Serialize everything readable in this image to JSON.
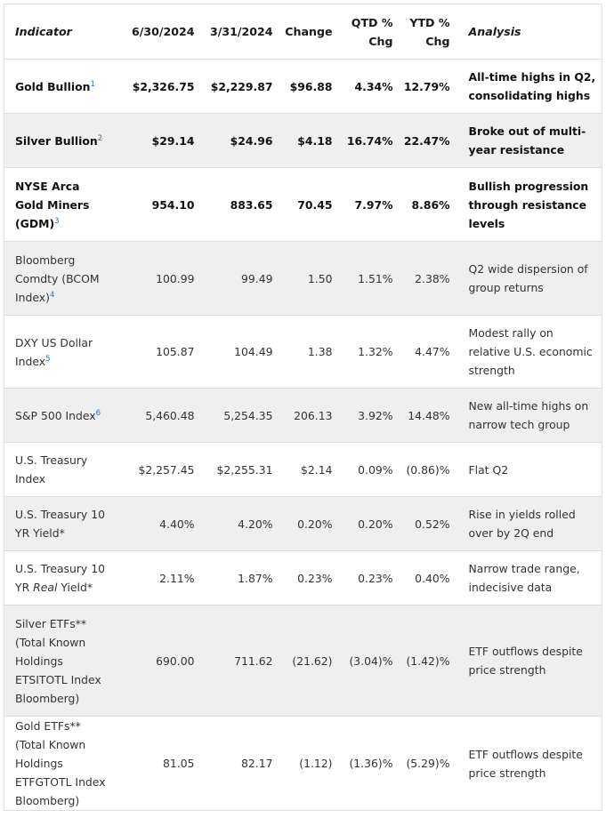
{
  "headers": {
    "indicator": "Indicator",
    "date1": "6/30/2024",
    "date2": "3/31/2024",
    "change": "Change",
    "qtd_line1": "QTD %",
    "qtd_line2": "Chg",
    "ytd_line1": "YTD %",
    "ytd_line2": "Chg",
    "analysis": "Analysis"
  },
  "rows": [
    {
      "name": "Gold Bullion",
      "sup": "1",
      "v1": "$2,326.75",
      "v2": "$2,229.87",
      "change": "$96.88",
      "qtd": "4.34%",
      "ytd": "12.79%",
      "analysis": "All-time highs in Q2, consolidating highs"
    },
    {
      "name": "Silver Bullion",
      "sup": "2",
      "v1": "$29.14",
      "v2": "$24.96",
      "change": "$4.18",
      "qtd": "16.74%",
      "ytd": "22.47%",
      "analysis": "Broke out of multi-year resistance"
    },
    {
      "name": "NYSE Arca Gold Miners (GDM)",
      "sup": "3",
      "v1": "954.10",
      "v2": "883.65",
      "change": "70.45",
      "qtd": "7.97%",
      "ytd": "8.86%",
      "analysis": "Bullish progression through resistance levels"
    },
    {
      "name": "Bloomberg Comdty (BCOM Index)",
      "sup": "4",
      "v1": "100.99",
      "v2": "99.49",
      "change": "1.50",
      "qtd": "1.51%",
      "ytd": "2.38%",
      "analysis": "Q2 wide dispersion of group returns"
    },
    {
      "name": "DXY US Dollar Index",
      "sup": "5",
      "v1": "105.87",
      "v2": "104.49",
      "change": "1.38",
      "qtd": "1.32%",
      "ytd": "4.47%",
      "analysis": "Modest rally on relative U.S. economic strength"
    },
    {
      "name": "S&P 500 Index",
      "sup": "6",
      "v1": "5,460.48",
      "v2": "5,254.35",
      "change": "206.13",
      "qtd": "3.92%",
      "ytd": "14.48%",
      "analysis": "New all-time highs on narrow tech group"
    },
    {
      "name": "U.S. Treasury Index",
      "v1": "$2,257.45",
      "v2": "$2,255.31",
      "change": "$2.14",
      "qtd": "0.09%",
      "ytd": "(0.86)%",
      "analysis": "Flat Q2"
    },
    {
      "name": "U.S. Treasury 10 YR Yield*",
      "v1": "4.40%",
      "v2": "4.20%",
      "change": "0.20%",
      "qtd": "0.20%",
      "ytd": "0.52%",
      "analysis": "Rise in yields rolled over by 2Q end"
    },
    {
      "name_pre": "U.S. Treasury 10 YR ",
      "name_em": "Real",
      "name_post": " Yield*",
      "v1": "2.11%",
      "v2": "1.87%",
      "change": "0.23%",
      "qtd": "0.23%",
      "ytd": "0.40%",
      "analysis": "Narrow trade range, indecisive data"
    },
    {
      "name": "Silver ETFs** (Total Known Holdings ETSITOTL Index Bloomberg)",
      "v1": "690.00",
      "v2": "711.62",
      "change": "(21.62)",
      "qtd": "(3.04)%",
      "ytd": "(1.42)%",
      "analysis": "ETF outflows despite price strength"
    },
    {
      "name": "Gold ETFs** (Total Known Holdings ETFGTOTL Index Bloomberg)",
      "v1": "81.05",
      "v2": "82.17",
      "change": "(1.12)",
      "qtd": "(1.36)%",
      "ytd": "(5.29)%",
      "analysis": "ETF outflows despite price strength"
    }
  ]
}
